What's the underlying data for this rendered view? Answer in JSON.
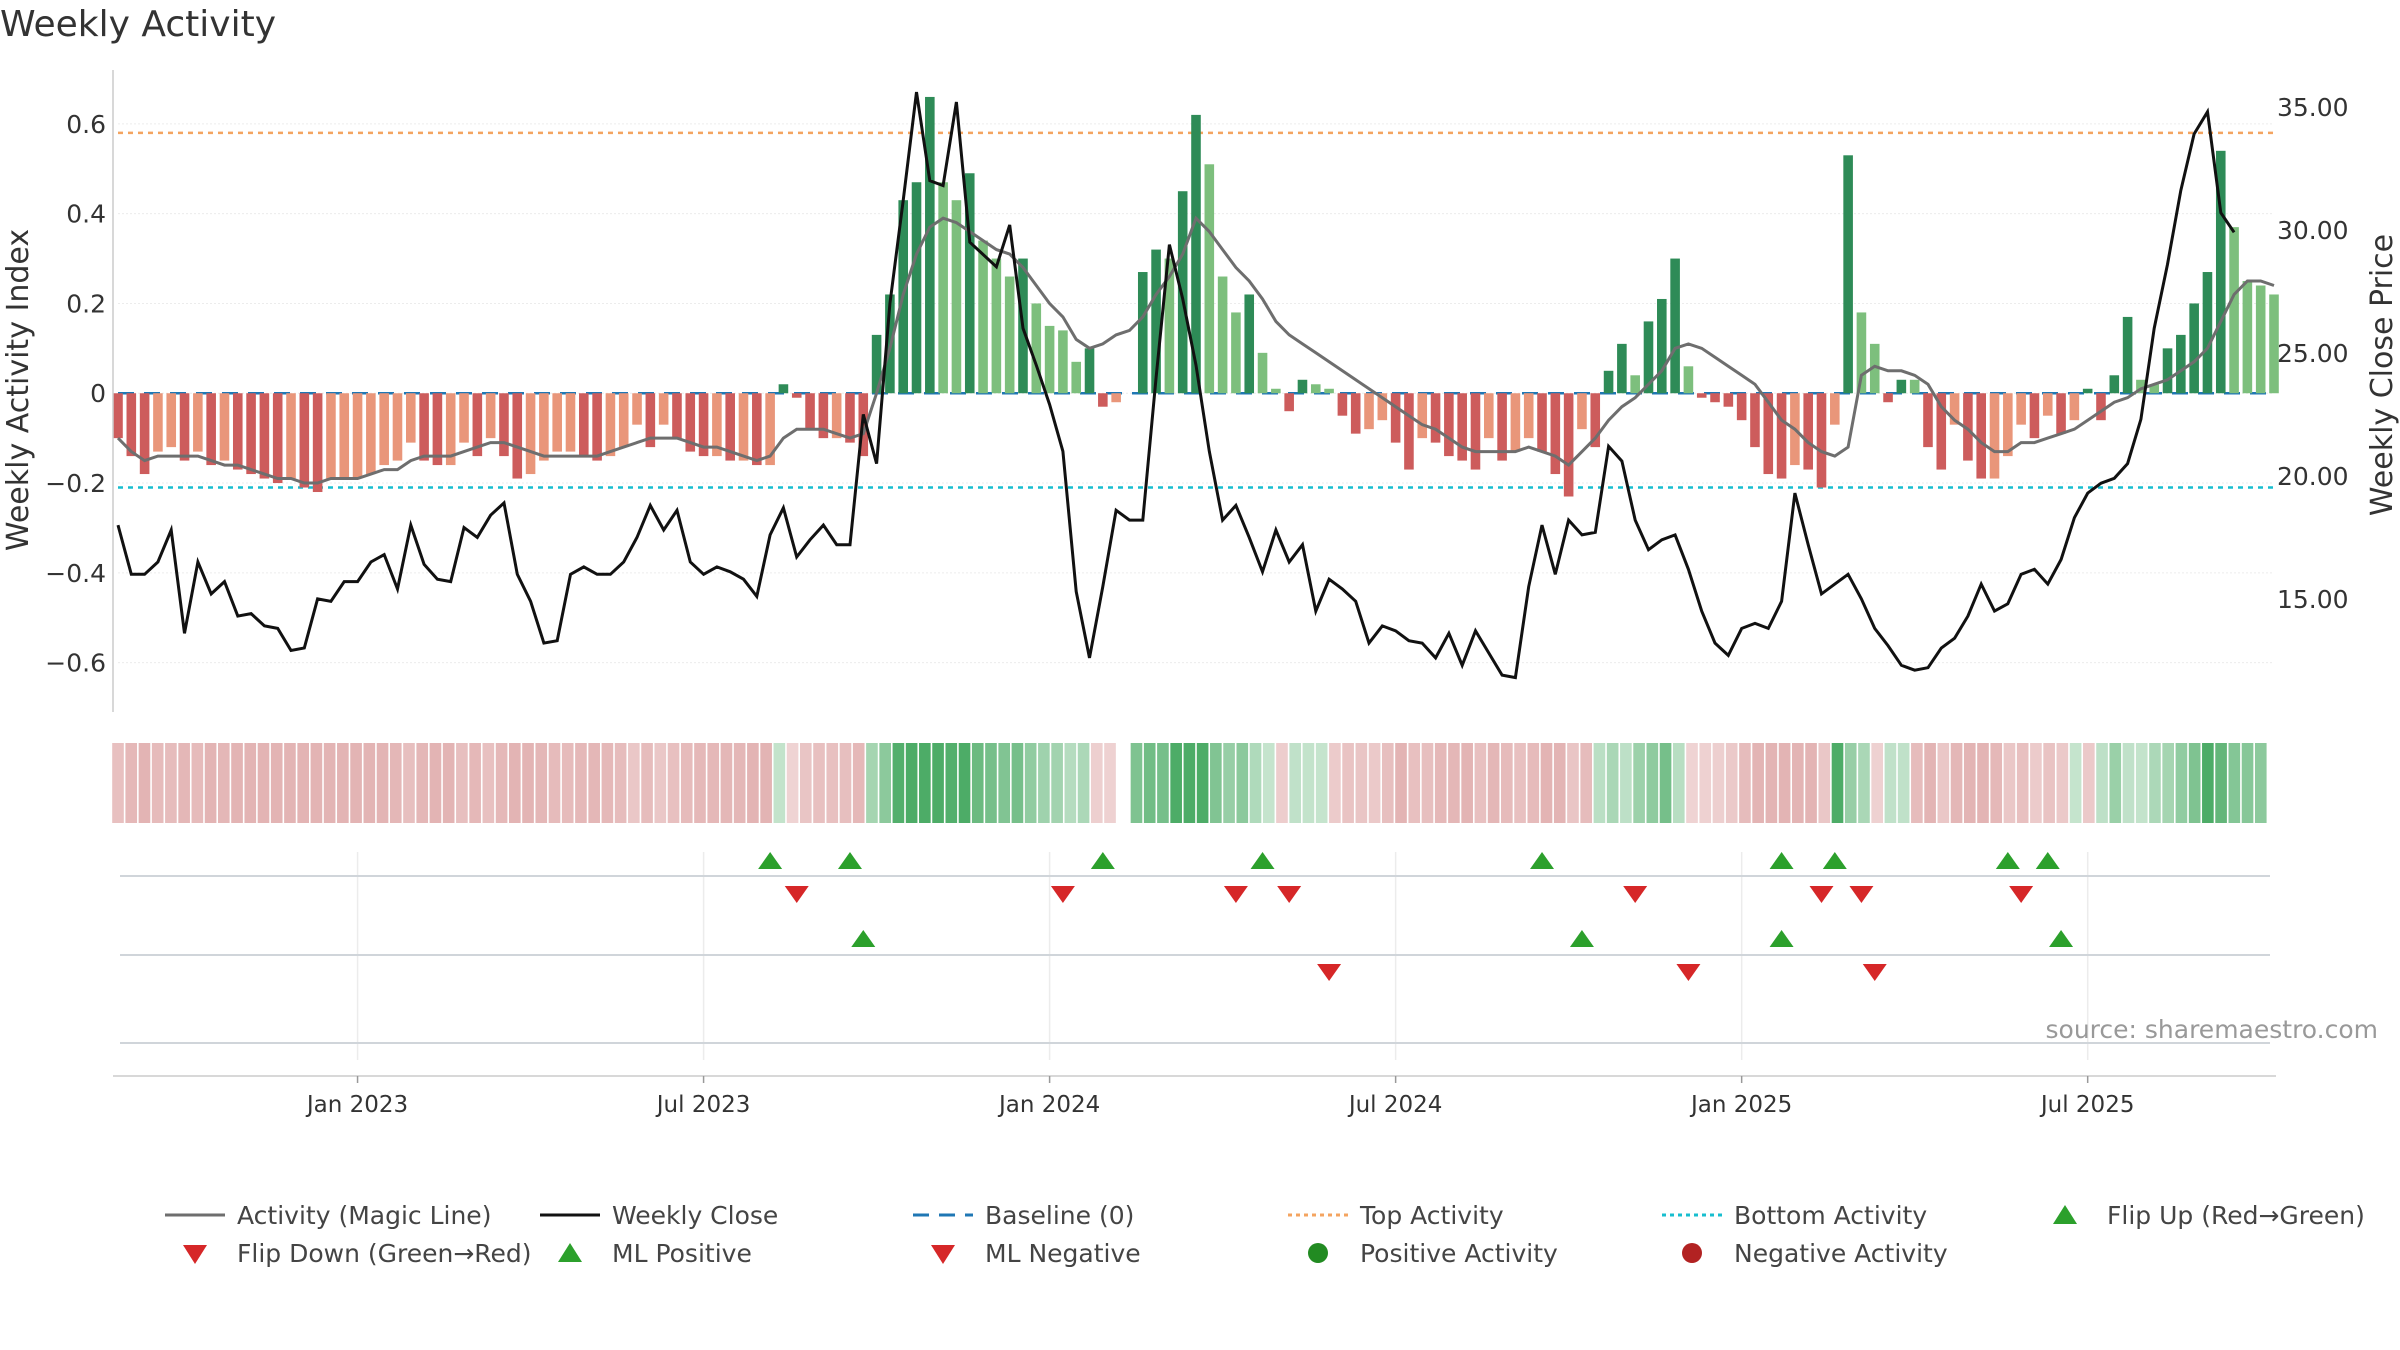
{
  "title": "Weekly Activity",
  "chart_data": {
    "type": "bar+line",
    "title": "Weekly Activity",
    "ylabel_left": "Weekly Activity Index",
    "ylabel_right": "Weekly Close Price",
    "ylim_left": [
      -0.71,
      0.72
    ],
    "ylim_right": [
      10.4,
      36.5
    ],
    "yticks_left": [
      {
        "value": 0.6,
        "label": "0.6"
      },
      {
        "value": 0.4,
        "label": "0.4"
      },
      {
        "value": 0.2,
        "label": "0.2"
      },
      {
        "value": 0,
        "label": "0"
      },
      {
        "value": -0.2,
        "label": "−0.2"
      },
      {
        "value": -0.4,
        "label": "−0.4"
      },
      {
        "value": -0.6,
        "label": "−0.6"
      }
    ],
    "yticks_right": [
      {
        "value": 35,
        "label": "35.00"
      },
      {
        "value": 30,
        "label": "30.00"
      },
      {
        "value": 25,
        "label": "25.00"
      },
      {
        "value": 20,
        "label": "20.00"
      },
      {
        "value": 15,
        "label": "15.00"
      }
    ],
    "xticks": [
      {
        "week": 18,
        "label": "Jan 2023"
      },
      {
        "week": 44,
        "label": "Jul 2023"
      },
      {
        "week": 70,
        "label": "Jan 2024"
      },
      {
        "week": 96,
        "label": "Jul 2024"
      },
      {
        "week": 122,
        "label": "Jan 2025"
      },
      {
        "week": 148,
        "label": "Jul 2025"
      }
    ],
    "top_activity": 0.58,
    "bottom_activity": -0.21,
    "baseline": 0,
    "activity": [
      -0.1,
      -0.14,
      -0.18,
      -0.13,
      -0.12,
      -0.15,
      -0.13,
      -0.16,
      -0.15,
      -0.17,
      -0.18,
      -0.19,
      -0.2,
      -0.19,
      -0.21,
      -0.22,
      -0.19,
      -0.19,
      -0.19,
      -0.18,
      -0.16,
      -0.15,
      -0.11,
      -0.15,
      -0.16,
      -0.16,
      -0.11,
      -0.14,
      -0.1,
      -0.14,
      -0.19,
      -0.18,
      -0.15,
      -0.13,
      -0.13,
      -0.14,
      -0.15,
      -0.14,
      -0.12,
      -0.07,
      -0.12,
      -0.07,
      -0.1,
      -0.13,
      -0.14,
      -0.14,
      -0.15,
      -0.15,
      -0.16,
      -0.16,
      0.02,
      -0.01,
      -0.08,
      -0.1,
      -0.1,
      -0.11,
      -0.14,
      0.13,
      0.22,
      0.43,
      0.47,
      0.66,
      0.47,
      0.43,
      0.49,
      0.34,
      0.3,
      0.26,
      0.3,
      0.2,
      0.15,
      0.14,
      0.07,
      0.1,
      -0.03,
      -0.02,
      0,
      0.27,
      0.32,
      0.3,
      0.45,
      0.62,
      0.51,
      0.26,
      0.18,
      0.22,
      0.09,
      0.01,
      -0.04,
      0.03,
      0.02,
      0.01,
      -0.05,
      -0.09,
      -0.08,
      -0.06,
      -0.11,
      -0.17,
      -0.1,
      -0.11,
      -0.14,
      -0.15,
      -0.17,
      -0.1,
      -0.15,
      -0.13,
      -0.1,
      -0.13,
      -0.18,
      -0.23,
      -0.08,
      -0.12,
      0.05,
      0.11,
      0.04,
      0.16,
      0.21,
      0.3,
      0.06,
      -0.01,
      -0.02,
      -0.03,
      -0.06,
      -0.12,
      -0.18,
      -0.19,
      -0.16,
      -0.17,
      -0.21,
      -0.07,
      0.53,
      0.18,
      0.11,
      -0.02,
      0.03,
      0.03,
      -0.12,
      -0.17,
      -0.07,
      -0.15,
      -0.19,
      -0.19,
      -0.14,
      -0.07,
      -0.1,
      -0.05,
      -0.09,
      -0.06,
      0.01,
      -0.06,
      0.04,
      0.17,
      0.03,
      0.02,
      0.1,
      0.13,
      0.2,
      0.27,
      0.54,
      0.37,
      0.25,
      0.24,
      0.22
    ],
    "magic_line": [
      -0.1,
      -0.13,
      -0.15,
      -0.14,
      -0.14,
      -0.14,
      -0.14,
      -0.15,
      -0.16,
      -0.16,
      -0.17,
      -0.18,
      -0.19,
      -0.19,
      -0.2,
      -0.2,
      -0.19,
      -0.19,
      -0.19,
      -0.18,
      -0.17,
      -0.17,
      -0.15,
      -0.14,
      -0.14,
      -0.14,
      -0.13,
      -0.12,
      -0.11,
      -0.11,
      -0.12,
      -0.13,
      -0.14,
      -0.14,
      -0.14,
      -0.14,
      -0.14,
      -0.13,
      -0.12,
      -0.11,
      -0.1,
      -0.1,
      -0.1,
      -0.11,
      -0.12,
      -0.12,
      -0.13,
      -0.14,
      -0.15,
      -0.14,
      -0.1,
      -0.08,
      -0.08,
      -0.08,
      -0.09,
      -0.1,
      -0.09,
      0.0,
      0.1,
      0.22,
      0.31,
      0.37,
      0.39,
      0.38,
      0.36,
      0.34,
      0.32,
      0.31,
      0.28,
      0.24,
      0.2,
      0.17,
      0.12,
      0.1,
      0.11,
      0.13,
      0.14,
      0.17,
      0.22,
      0.26,
      0.31,
      0.39,
      0.36,
      0.32,
      0.28,
      0.25,
      0.21,
      0.16,
      0.13,
      0.11,
      0.09,
      0.07,
      0.05,
      0.03,
      0.01,
      -0.01,
      -0.03,
      -0.05,
      -0.07,
      -0.08,
      -0.1,
      -0.12,
      -0.13,
      -0.13,
      -0.13,
      -0.13,
      -0.12,
      -0.13,
      -0.14,
      -0.16,
      -0.13,
      -0.1,
      -0.06,
      -0.03,
      -0.01,
      0.02,
      0.05,
      0.1,
      0.11,
      0.1,
      0.08,
      0.06,
      0.04,
      0.02,
      -0.02,
      -0.06,
      -0.08,
      -0.11,
      -0.13,
      -0.14,
      -0.12,
      0.04,
      0.06,
      0.05,
      0.05,
      0.04,
      0.02,
      -0.03,
      -0.06,
      -0.08,
      -0.11,
      -0.13,
      -0.13,
      -0.11,
      -0.11,
      -0.1,
      -0.09,
      -0.08,
      -0.06,
      -0.04,
      -0.02,
      -0.01,
      0.01,
      0.02,
      0.03,
      0.05,
      0.07,
      0.1,
      0.16,
      0.22,
      0.25,
      0.25,
      0.24
    ],
    "weekly_close": [
      18.0,
      16.0,
      16.0,
      16.5,
      17.8,
      13.6,
      16.5,
      15.2,
      15.7,
      14.3,
      14.4,
      13.9,
      13.8,
      12.9,
      13.0,
      15.0,
      14.9,
      15.7,
      15.7,
      16.5,
      16.8,
      15.4,
      18.0,
      16.4,
      15.8,
      15.7,
      17.9,
      17.5,
      18.4,
      18.9,
      16.0,
      14.9,
      13.2,
      13.3,
      16.0,
      16.3,
      16.0,
      16.0,
      16.5,
      17.5,
      18.8,
      17.8,
      18.6,
      16.5,
      16.0,
      16.3,
      16.1,
      15.8,
      15.1,
      17.6,
      18.7,
      16.7,
      17.4,
      18.0,
      17.2,
      17.2,
      22.5,
      20.5,
      27.0,
      31.2,
      35.6,
      32.0,
      31.8,
      35.2,
      29.5,
      29.0,
      28.5,
      30.2,
      26.0,
      24.5,
      22.9,
      21.0,
      15.3,
      12.6,
      15.5,
      18.6,
      18.2,
      18.2,
      24.0,
      29.4,
      27.2,
      24.5,
      21.0,
      18.2,
      18.8,
      17.5,
      16.1,
      17.8,
      16.5,
      17.2,
      14.5,
      15.8,
      15.4,
      14.9,
      13.2,
      13.9,
      13.7,
      13.3,
      13.2,
      12.6,
      13.6,
      12.3,
      13.7,
      12.8,
      11.9,
      11.8,
      15.5,
      18.0,
      16.0,
      18.2,
      17.6,
      17.7,
      21.2,
      20.6,
      18.2,
      17.0,
      17.4,
      17.6,
      16.2,
      14.5,
      13.2,
      12.7,
      13.8,
      14.0,
      13.8,
      14.9,
      19.3,
      17.2,
      15.2,
      15.6,
      16.0,
      15.0,
      13.8,
      13.1,
      12.3,
      12.1,
      12.2,
      13.0,
      13.4,
      14.3,
      15.6,
      14.5,
      14.8,
      16.0,
      16.2,
      15.6,
      16.6,
      18.3,
      19.3,
      19.7,
      19.9,
      20.5,
      22.3,
      26.0,
      28.6,
      31.6,
      33.9,
      34.8,
      30.7,
      29.9
    ],
    "color_strip": [
      -0.1,
      -0.14,
      -0.18,
      -0.13,
      -0.12,
      -0.15,
      -0.13,
      -0.16,
      -0.15,
      -0.17,
      -0.18,
      -0.19,
      -0.2,
      -0.19,
      -0.21,
      -0.22,
      -0.19,
      -0.19,
      -0.19,
      -0.18,
      -0.16,
      -0.15,
      -0.11,
      -0.15,
      -0.16,
      -0.16,
      -0.11,
      -0.14,
      -0.1,
      -0.14,
      -0.19,
      -0.18,
      -0.15,
      -0.13,
      -0.13,
      -0.14,
      -0.15,
      -0.14,
      -0.12,
      -0.07,
      -0.12,
      -0.07,
      -0.1,
      -0.13,
      -0.14,
      -0.14,
      -0.15,
      -0.15,
      -0.16,
      -0.16,
      0.02,
      -0.01,
      -0.08,
      -0.1,
      -0.1,
      -0.11,
      -0.14,
      0.13,
      0.22,
      0.43,
      0.47,
      0.66,
      0.47,
      0.43,
      0.49,
      0.34,
      0.3,
      0.26,
      0.3,
      0.2,
      0.15,
      0.14,
      0.07,
      0.1,
      -0.03,
      -0.02,
      null,
      0.27,
      0.32,
      0.3,
      0.45,
      0.62,
      0.51,
      0.26,
      0.18,
      0.22,
      0.09,
      0.01,
      -0.04,
      0.03,
      0.02,
      0.01,
      -0.05,
      -0.09,
      -0.08,
      -0.06,
      -0.11,
      -0.17,
      -0.1,
      -0.11,
      -0.14,
      -0.15,
      -0.17,
      -0.1,
      -0.15,
      -0.13,
      -0.1,
      -0.13,
      -0.18,
      -0.23,
      -0.08,
      -0.12,
      0.05,
      0.11,
      0.04,
      0.16,
      0.21,
      0.3,
      0.06,
      -0.01,
      -0.02,
      -0.03,
      -0.06,
      -0.12,
      -0.18,
      -0.19,
      -0.16,
      -0.17,
      -0.21,
      -0.07,
      0.53,
      0.18,
      0.11,
      -0.02,
      0.03,
      0.03,
      -0.12,
      -0.17,
      -0.07,
      -0.15,
      -0.19,
      -0.19,
      -0.14,
      -0.07,
      -0.1,
      -0.05,
      -0.09,
      -0.06,
      0.01,
      -0.06,
      0.04,
      0.17,
      0.03,
      0.02,
      0.1,
      0.13,
      0.2,
      0.27,
      0.54,
      0.37,
      0.25,
      0.24,
      0.22
    ],
    "flip_up_weeks": [
      49,
      55,
      74,
      86,
      107,
      125,
      129,
      142,
      145
    ],
    "flip_down_weeks": [
      51,
      71,
      84,
      88,
      114,
      128,
      131,
      143
    ],
    "ml_positive_weeks": [
      56,
      110,
      125,
      146
    ],
    "ml_negative_weeks": [
      91,
      118,
      132
    ],
    "annotation": "source: sharemaestro.com",
    "colors": {
      "strong_green": "#2e8b57",
      "light_green": "#7dbf7d",
      "strong_red": "#cd5c5c",
      "light_red": "#e9967a",
      "magic_line": "#6e6e6e",
      "close_line": "#111111",
      "baseline": "#1f77b4",
      "top_activity": "#f4a460",
      "bottom_activity": "#17becf",
      "marker_green": "#2ca02c",
      "marker_red": "#d62728",
      "dot_green": "#228b22",
      "dot_red": "#b22222"
    }
  },
  "legend": [
    {
      "key": "magic",
      "label": "Activity (Magic Line)"
    },
    {
      "key": "close",
      "label": "Weekly Close"
    },
    {
      "key": "baseline",
      "label": "Baseline (0)"
    },
    {
      "key": "top",
      "label": "Top Activity"
    },
    {
      "key": "bottom",
      "label": "Bottom Activity"
    },
    {
      "key": "flipup",
      "label": "Flip Up (Red→Green)"
    },
    {
      "key": "flipdown",
      "label": "Flip Down (Green→Red)"
    },
    {
      "key": "mlpos",
      "label": "ML Positive"
    },
    {
      "key": "mlneg",
      "label": "ML Negative"
    },
    {
      "key": "posact",
      "label": "Positive Activity"
    },
    {
      "key": "negact",
      "label": "Negative Activity"
    }
  ]
}
